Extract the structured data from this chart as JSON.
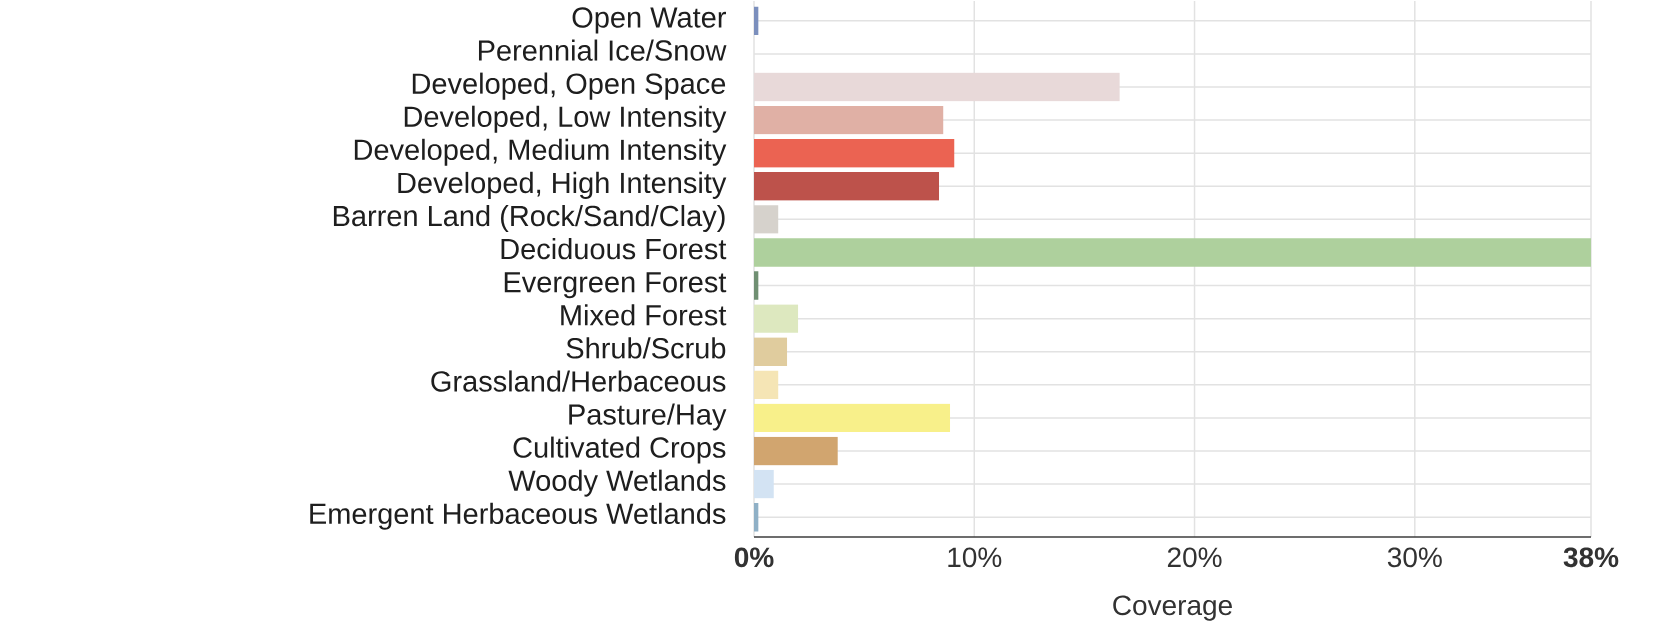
{
  "chart_data": {
    "type": "bar",
    "orientation": "horizontal",
    "xlabel": "Coverage",
    "categories": [
      "Open Water",
      "Perennial Ice/Snow",
      "Developed, Open Space",
      "Developed, Low Intensity",
      "Developed, Medium Intensity",
      "Developed, High Intensity",
      "Barren Land (Rock/Sand/Clay)",
      "Deciduous Forest",
      "Evergreen Forest",
      "Mixed Forest",
      "Shrub/Scrub",
      "Grassland/Herbaceous",
      "Pasture/Hay",
      "Cultivated Crops",
      "Woody Wetlands",
      "Emergent Herbaceous Wetlands"
    ],
    "values": [
      0.2,
      0,
      16.6,
      8.6,
      9.1,
      8.4,
      1.1,
      38,
      0.2,
      2.0,
      1.5,
      1.1,
      8.9,
      3.8,
      0.9,
      0.2
    ],
    "colors": [
      "#7b8fbd",
      "#ffffff",
      "#e8d9d9",
      "#e0b0a5",
      "#eb6352",
      "#bd524b",
      "#d6d2cc",
      "#aed09d",
      "#6f8f72",
      "#dde8bf",
      "#e0cc9e",
      "#f5e5b5",
      "#f8f08a",
      "#d1a56f",
      "#d3e3f3",
      "#8fb0c6"
    ],
    "xlim": [
      0,
      38
    ],
    "xticks": [
      {
        "value": 0,
        "label": "0%"
      },
      {
        "value": 10,
        "label": "10%"
      },
      {
        "value": 20,
        "label": "20%"
      },
      {
        "value": 30,
        "label": "30%"
      },
      {
        "value": 38,
        "label": "38%"
      }
    ],
    "grid": true
  }
}
